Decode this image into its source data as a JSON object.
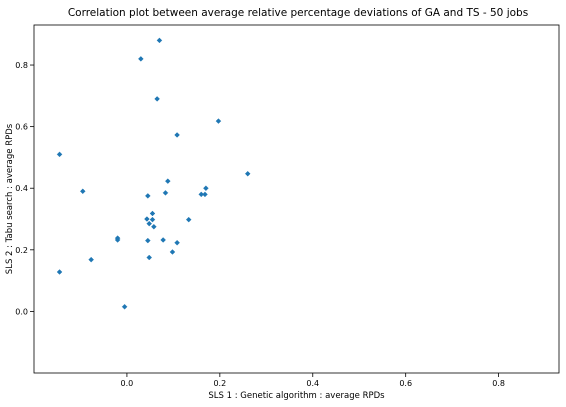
{
  "chart_data": {
    "type": "scatter",
    "title": "Correlation plot between average relative percentage deviations of GA and TS - 50 jobs",
    "xlabel": "SLS 1 : Genetic algorithm : average RPDs",
    "ylabel": "SLS 2 : Tabu search : average RPDs",
    "xlim": [
      -0.2,
      0.93
    ],
    "ylim": [
      -0.2,
      0.93
    ],
    "xticks": [
      0.0,
      0.2,
      0.4,
      0.6,
      0.8
    ],
    "xtick_labels": [
      "0.0",
      "0.2",
      "0.4",
      "0.6",
      "0.8"
    ],
    "yticks": [
      0.0,
      0.2,
      0.4,
      0.6,
      0.8
    ],
    "ytick_labels": [
      "0.0",
      "0.2",
      "0.4",
      "0.6",
      "0.8"
    ],
    "grid": false,
    "marker": "diamond",
    "marker_color": "#1f77b4",
    "series": [
      {
        "points": [
          {
            "x": 0.07,
            "y": 0.88
          },
          {
            "x": 0.03,
            "y": 0.82
          },
          {
            "x": 0.065,
            "y": 0.69
          },
          {
            "x": 0.197,
            "y": 0.618
          },
          {
            "x": 0.108,
            "y": 0.573
          },
          {
            "x": -0.145,
            "y": 0.51
          },
          {
            "x": 0.26,
            "y": 0.447
          },
          {
            "x": 0.088,
            "y": 0.423
          },
          {
            "x": 0.17,
            "y": 0.4
          },
          {
            "x": -0.095,
            "y": 0.39
          },
          {
            "x": 0.083,
            "y": 0.385
          },
          {
            "x": 0.16,
            "y": 0.38
          },
          {
            "x": 0.168,
            "y": 0.38
          },
          {
            "x": 0.045,
            "y": 0.375
          },
          {
            "x": 0.055,
            "y": 0.318
          },
          {
            "x": 0.043,
            "y": 0.3
          },
          {
            "x": 0.055,
            "y": 0.298
          },
          {
            "x": 0.133,
            "y": 0.298
          },
          {
            "x": 0.048,
            "y": 0.285
          },
          {
            "x": 0.058,
            "y": 0.275
          },
          {
            "x": -0.02,
            "y": 0.238
          },
          {
            "x": -0.02,
            "y": 0.232
          },
          {
            "x": 0.045,
            "y": 0.23
          },
          {
            "x": 0.078,
            "y": 0.232
          },
          {
            "x": 0.108,
            "y": 0.223
          },
          {
            "x": 0.098,
            "y": 0.193
          },
          {
            "x": 0.048,
            "y": 0.175
          },
          {
            "x": -0.077,
            "y": 0.168
          },
          {
            "x": -0.145,
            "y": 0.128
          },
          {
            "x": -0.005,
            "y": 0.015
          }
        ]
      }
    ]
  }
}
